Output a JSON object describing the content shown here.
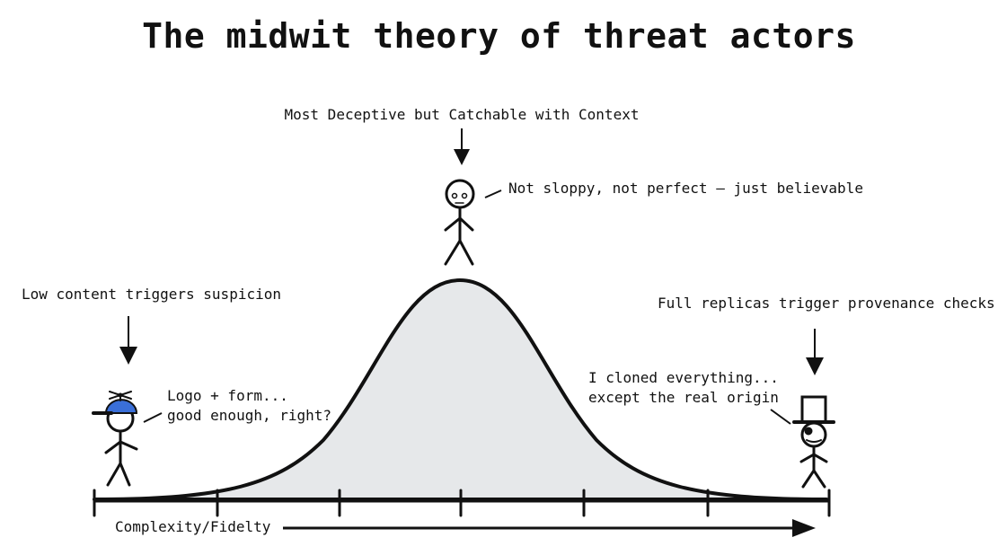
{
  "title": "The midwit theory of threat actors",
  "top_label": "Most Deceptive but Catchable with Context",
  "mid_quote": "Not sloppy, not perfect — just believable",
  "left_label": "Low content triggers suspicion",
  "left_quote": [
    "Logo + form...",
    "good enough, right?"
  ],
  "right_label": "Full replicas trigger provenance checks",
  "right_quote": [
    "I cloned everything...",
    "except the real origin"
  ],
  "axis_label": "Complexity/Fidelty",
  "colors": {
    "curve_fill": "#e6e8ea",
    "ink": "#111111",
    "cap_blue": "#3a6fd8"
  },
  "icons": [
    "stick-figure-propeller-cap-icon",
    "stick-figure-top-hat-icon",
    "stick-figure-plain-icon"
  ]
}
